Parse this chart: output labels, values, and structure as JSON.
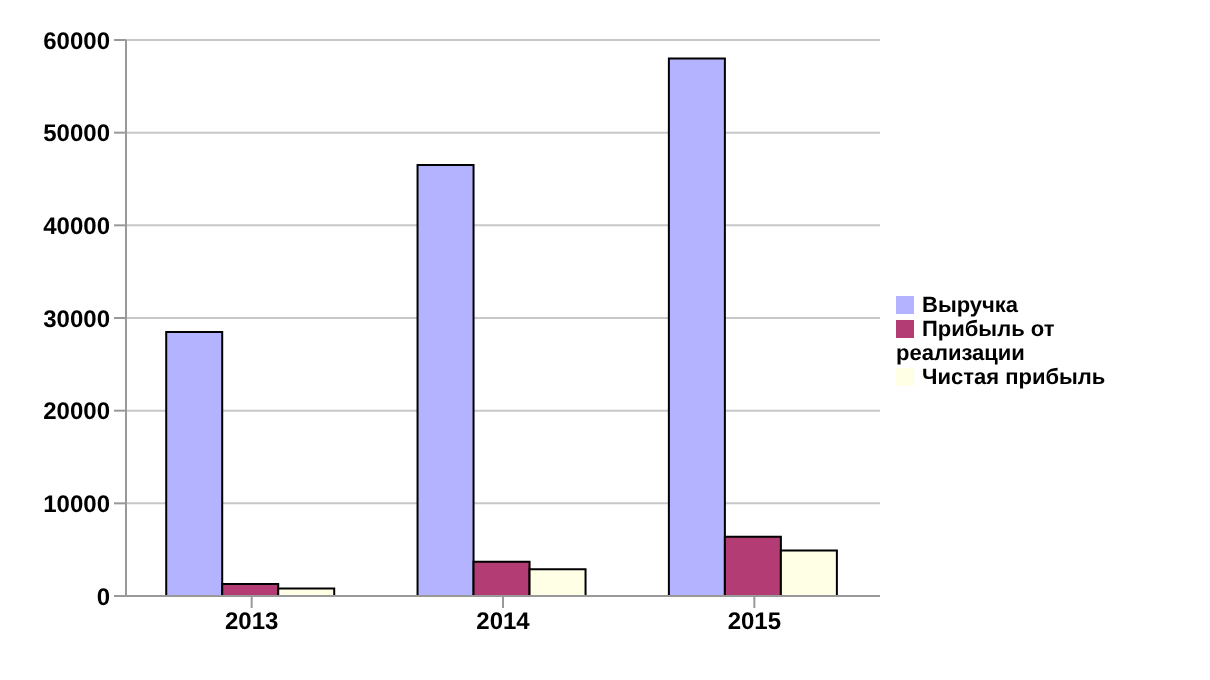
{
  "chart_data": {
    "type": "bar",
    "categories": [
      "2013",
      "2014",
      "2015"
    ],
    "series": [
      {
        "name": "Выручка",
        "color": "#b3b3ff",
        "values": [
          28500,
          46500,
          58000
        ]
      },
      {
        "name": "Прибыль от реализации",
        "color": "#b33c74",
        "values": [
          1300,
          3700,
          6400
        ]
      },
      {
        "name": "Чистая прибыль",
        "color": "#ffffe6",
        "values": [
          800,
          2900,
          4900
        ]
      }
    ],
    "ylim": [
      0,
      60000
    ],
    "yticks": [
      0,
      10000,
      20000,
      30000,
      40000,
      50000,
      60000
    ],
    "grid": "y",
    "legend": "right"
  }
}
